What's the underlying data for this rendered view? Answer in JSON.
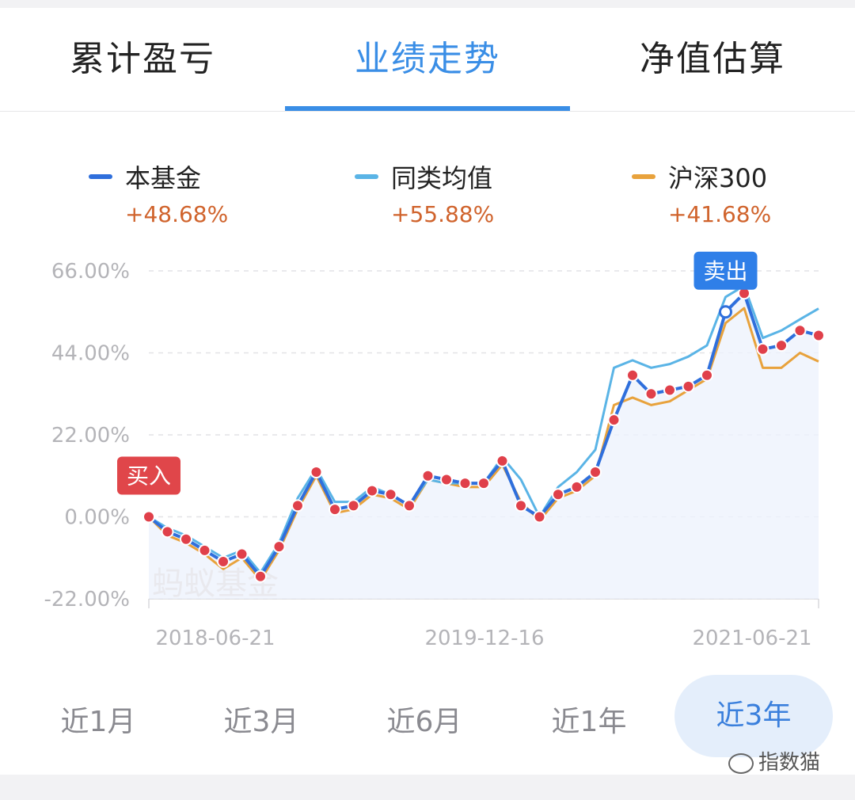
{
  "tabs": [
    {
      "label": "累计盈亏",
      "active": false
    },
    {
      "label": "业绩走势",
      "active": true
    },
    {
      "label": "净值估算",
      "active": false
    }
  ],
  "legend": [
    {
      "name": "本基金",
      "change": "+48.68%",
      "color": "#2f6fdc"
    },
    {
      "name": "同类均值",
      "change": "+55.88%",
      "color": "#5ab4e6"
    },
    {
      "name": "沪深300",
      "change": "+41.68%",
      "color": "#e8a23c"
    }
  ],
  "markers": {
    "buy": "买入",
    "sell": "卖出"
  },
  "watermark": "蚂蚁基金",
  "ranges": [
    {
      "label": "近1月",
      "active": false
    },
    {
      "label": "近3月",
      "active": false
    },
    {
      "label": "近6月",
      "active": false
    },
    {
      "label": "近1年",
      "active": false
    },
    {
      "label": "近3年",
      "active": true
    }
  ],
  "brand": "指数猫",
  "colors": {
    "accent": "#3a8ee6",
    "buy_badge": "#e0464a",
    "sell_badge": "#2f7fe8",
    "dot": "#e0404a",
    "positive_change": "#d0632c"
  },
  "chart_data": {
    "type": "line",
    "ylim": [
      -22,
      66
    ],
    "y_ticks": [
      "66.00%",
      "44.00%",
      "22.00%",
      "0.00%",
      "-22.00%"
    ],
    "x_ticks": [
      "2018-06-21",
      "2019-12-16",
      "2021-06-21"
    ],
    "x": [
      "2018-06",
      "2018-07",
      "2018-08",
      "2018-09",
      "2018-10",
      "2018-11",
      "2018-12",
      "2019-01",
      "2019-02",
      "2019-03",
      "2019-04",
      "2019-05",
      "2019-06",
      "2019-07",
      "2019-08",
      "2019-09",
      "2019-10",
      "2019-11",
      "2019-12",
      "2020-01",
      "2020-02",
      "2020-03",
      "2020-04",
      "2020-05",
      "2020-06",
      "2020-07",
      "2020-08",
      "2020-09",
      "2020-10",
      "2020-11",
      "2020-12",
      "2021-01",
      "2021-02",
      "2021-03",
      "2021-04",
      "2021-05",
      "2021-06"
    ],
    "series": [
      {
        "name": "本基金",
        "values": [
          0,
          -4,
          -6,
          -9,
          -12,
          -10,
          -16,
          -8,
          3,
          12,
          2,
          3,
          7,
          6,
          3,
          11,
          10,
          9,
          9,
          15,
          3,
          0,
          6,
          8,
          12,
          26,
          38,
          33,
          34,
          35,
          38,
          55,
          60,
          45,
          46,
          50,
          48.68
        ]
      },
      {
        "name": "同类均值",
        "values": [
          0,
          -3,
          -5,
          -8,
          -11,
          -9,
          -15,
          -7,
          5,
          13,
          4,
          4,
          8,
          6,
          3,
          10,
          9,
          9,
          9,
          16,
          10,
          0,
          8,
          12,
          18,
          40,
          42,
          40,
          41,
          43,
          46,
          59,
          62,
          48,
          50,
          53,
          55.88
        ]
      },
      {
        "name": "沪深300",
        "values": [
          0,
          -5,
          -7,
          -10,
          -14,
          -11,
          -17,
          -9,
          2,
          11,
          1,
          2,
          6,
          5,
          2,
          10,
          9,
          8,
          8,
          14,
          4,
          -1,
          5,
          7,
          11,
          30,
          32,
          30,
          31,
          34,
          37,
          52,
          56,
          40,
          40,
          44,
          41.68
        ]
      }
    ],
    "buy_index": 0,
    "sell_index": 31,
    "grid": true,
    "legend_position": "top"
  }
}
